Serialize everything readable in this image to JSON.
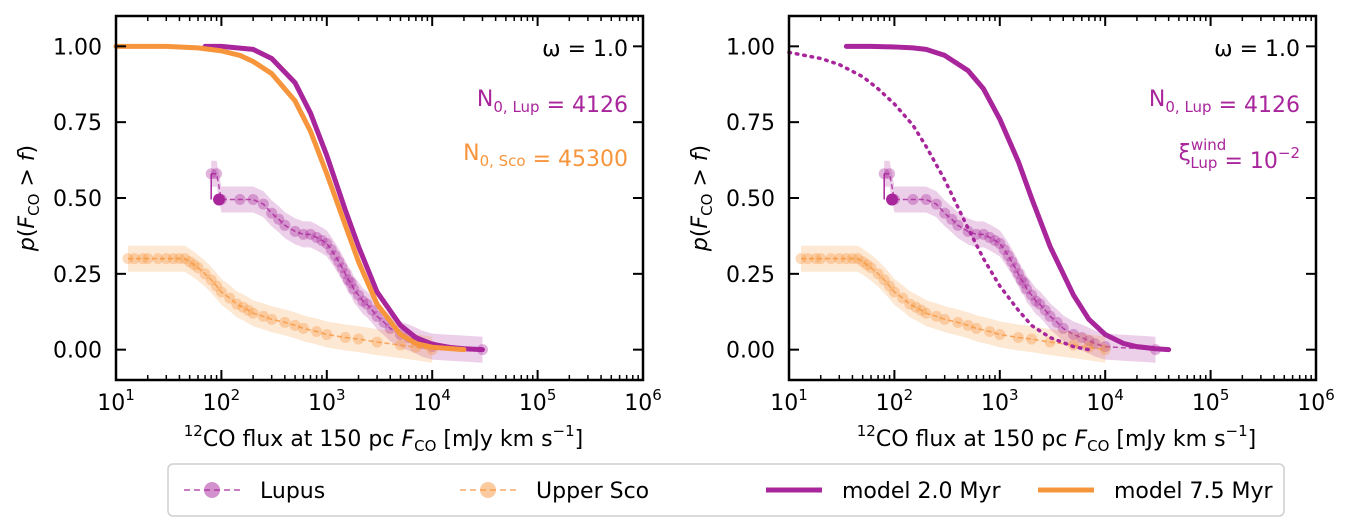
{
  "colors": {
    "lupus": "#a8259b",
    "usco": "#f7953d"
  },
  "legend": {
    "items": [
      {
        "label": "Lupus",
        "style": "obs",
        "color": "#a8259b"
      },
      {
        "label": "Upper Sco",
        "style": "obs",
        "color": "#f7953d"
      },
      {
        "label": "model 2.0 Myr",
        "style": "model",
        "color": "#a8259b"
      },
      {
        "label": "model 7.5 Myr",
        "style": "model",
        "color": "#f7953d"
      }
    ]
  },
  "chart_data": [
    {
      "type": "line",
      "xscale": "log",
      "xlim": [
        10,
        1000000
      ],
      "ylim": [
        -0.1,
        1.1
      ],
      "xlabel": "¹²CO flux at 150 pc F_CO [mJy km s⁻¹]",
      "ylabel": "p(F_CO > f)",
      "x_ticks": [
        10,
        100,
        1000,
        10000,
        100000,
        1000000
      ],
      "x_tick_labels": [
        "10^1",
        "10^2",
        "10^3",
        "10^4",
        "10^5",
        "10^6"
      ],
      "y_ticks": [
        0,
        0.25,
        0.5,
        0.75,
        1.0
      ],
      "y_tick_labels": [
        "0.00",
        "0.25",
        "0.50",
        "0.75",
        "1.00"
      ],
      "annotations": [
        {
          "text": "ω = 1.0",
          "color": "#000000"
        },
        {
          "text": "N_0,Lup = 4126",
          "color": "#a8259b"
        },
        {
          "text": "N_0,Sco = 45300",
          "color": "#f7953d"
        }
      ],
      "series": [
        {
          "name": "model 2.0 Myr",
          "style": "solid",
          "color": "#a8259b",
          "x": [
            70,
            100,
            200,
            300,
            500,
            700,
            1000,
            1500,
            2000,
            3000,
            5000,
            7000,
            10000,
            15000,
            20000,
            30000
          ],
          "y": [
            1.0,
            1.0,
            0.99,
            0.96,
            0.88,
            0.78,
            0.64,
            0.46,
            0.34,
            0.19,
            0.08,
            0.04,
            0.018,
            0.007,
            0.003,
            0.0
          ]
        },
        {
          "name": "model 7.5 Myr",
          "style": "solid",
          "color": "#f7953d",
          "x": [
            10,
            30,
            60,
            100,
            150,
            200,
            300,
            500,
            700,
            1000,
            1500,
            2000,
            3000,
            5000,
            7000,
            10000,
            20000
          ],
          "y": [
            1.0,
            1.0,
            0.995,
            0.985,
            0.97,
            0.95,
            0.91,
            0.82,
            0.72,
            0.58,
            0.41,
            0.29,
            0.15,
            0.05,
            0.02,
            0.008,
            0.0
          ]
        },
        {
          "name": "Lupus",
          "style": "obs",
          "color": "#a8259b",
          "x": [
            80,
            90,
            100,
            150,
            200,
            250,
            300,
            350,
            400,
            500,
            600,
            700,
            800,
            900,
            1000,
            1100,
            1200,
            1300,
            1400,
            1500,
            1600,
            1700,
            1800,
            2000,
            2200,
            2400,
            2700,
            3000,
            3500,
            4000,
            5000,
            6000,
            7000,
            8000,
            10000,
            30000
          ],
          "y": [
            0.58,
            0.58,
            0.495,
            0.495,
            0.495,
            0.48,
            0.45,
            0.43,
            0.41,
            0.39,
            0.38,
            0.38,
            0.37,
            0.36,
            0.35,
            0.33,
            0.31,
            0.29,
            0.27,
            0.25,
            0.23,
            0.22,
            0.2,
            0.18,
            0.16,
            0.15,
            0.13,
            0.11,
            0.09,
            0.07,
            0.05,
            0.04,
            0.03,
            0.02,
            0.01,
            0.0
          ]
        },
        {
          "name": "Upper Sco",
          "style": "obs",
          "color": "#f7953d",
          "x": [
            13,
            15,
            18,
            20,
            25,
            30,
            35,
            40,
            45,
            50,
            55,
            60,
            70,
            80,
            90,
            100,
            120,
            140,
            160,
            180,
            200,
            250,
            300,
            400,
            500,
            600,
            800,
            1000,
            1500,
            2000,
            3000,
            5000,
            7000,
            10000
          ],
          "y": [
            0.3,
            0.3,
            0.3,
            0.3,
            0.3,
            0.3,
            0.3,
            0.3,
            0.3,
            0.29,
            0.28,
            0.27,
            0.25,
            0.23,
            0.21,
            0.19,
            0.17,
            0.15,
            0.14,
            0.13,
            0.12,
            0.11,
            0.1,
            0.09,
            0.08,
            0.07,
            0.06,
            0.05,
            0.04,
            0.035,
            0.025,
            0.015,
            0.008,
            0.0
          ]
        }
      ]
    },
    {
      "type": "line",
      "xscale": "log",
      "xlim": [
        10,
        1000000
      ],
      "ylim": [
        -0.1,
        1.1
      ],
      "xlabel": "¹²CO flux at 150 pc F_CO [mJy km s⁻¹]",
      "ylabel": "p(F_CO > f)",
      "x_ticks": [
        10,
        100,
        1000,
        10000,
        100000,
        1000000
      ],
      "x_tick_labels": [
        "10^1",
        "10^2",
        "10^3",
        "10^4",
        "10^5",
        "10^6"
      ],
      "y_ticks": [
        0,
        0.25,
        0.5,
        0.75,
        1.0
      ],
      "y_tick_labels": [
        "0.00",
        "0.25",
        "0.50",
        "0.75",
        "1.00"
      ],
      "annotations": [
        {
          "text": "ω = 1.0",
          "color": "#000000"
        },
        {
          "text": "N_0,Lup = 4126",
          "color": "#a8259b"
        },
        {
          "text": "ξ_Lup^wind = 10^−2",
          "color": "#a8259b"
        }
      ],
      "series": [
        {
          "name": "model 2.0 Myr",
          "style": "solid",
          "color": "#a8259b",
          "x": [
            35,
            60,
            100,
            150,
            200,
            300,
            500,
            700,
            1000,
            1500,
            2000,
            3000,
            5000,
            7000,
            10000,
            15000,
            20000,
            30000,
            40000
          ],
          "y": [
            1.0,
            1.0,
            0.998,
            0.995,
            0.99,
            0.97,
            0.92,
            0.86,
            0.76,
            0.62,
            0.5,
            0.34,
            0.18,
            0.1,
            0.05,
            0.02,
            0.01,
            0.003,
            0.0
          ]
        },
        {
          "name": "",
          "style": "dotted",
          "color": "#a8259b",
          "x": [
            10,
            20,
            30,
            50,
            70,
            100,
            150,
            200,
            300,
            400,
            500,
            700,
            1000,
            1500,
            2000,
            3000,
            5000,
            7000
          ],
          "y": [
            0.98,
            0.96,
            0.94,
            0.9,
            0.86,
            0.81,
            0.74,
            0.67,
            0.56,
            0.47,
            0.4,
            0.3,
            0.21,
            0.13,
            0.08,
            0.04,
            0.01,
            0.0
          ]
        },
        {
          "name": "Lupus",
          "style": "obs",
          "color": "#a8259b",
          "x": [
            80,
            90,
            100,
            150,
            200,
            250,
            300,
            350,
            400,
            500,
            600,
            700,
            800,
            900,
            1000,
            1100,
            1200,
            1300,
            1400,
            1500,
            1600,
            1700,
            1800,
            2000,
            2200,
            2400,
            2700,
            3000,
            3500,
            4000,
            5000,
            6000,
            7000,
            8000,
            10000,
            30000
          ],
          "y": [
            0.58,
            0.58,
            0.495,
            0.495,
            0.495,
            0.48,
            0.45,
            0.43,
            0.41,
            0.39,
            0.38,
            0.38,
            0.37,
            0.36,
            0.35,
            0.33,
            0.31,
            0.29,
            0.27,
            0.25,
            0.23,
            0.22,
            0.2,
            0.18,
            0.16,
            0.15,
            0.13,
            0.11,
            0.09,
            0.07,
            0.05,
            0.04,
            0.03,
            0.02,
            0.01,
            0.0
          ]
        },
        {
          "name": "Upper Sco",
          "style": "obs",
          "color": "#f7953d",
          "x": [
            13,
            15,
            18,
            20,
            25,
            30,
            35,
            40,
            45,
            50,
            55,
            60,
            70,
            80,
            90,
            100,
            120,
            140,
            160,
            180,
            200,
            250,
            300,
            400,
            500,
            600,
            800,
            1000,
            1500,
            2000,
            3000,
            5000,
            7000,
            10000
          ],
          "y": [
            0.3,
            0.3,
            0.3,
            0.3,
            0.3,
            0.3,
            0.3,
            0.3,
            0.3,
            0.29,
            0.28,
            0.27,
            0.25,
            0.23,
            0.21,
            0.19,
            0.17,
            0.15,
            0.14,
            0.13,
            0.12,
            0.11,
            0.1,
            0.09,
            0.08,
            0.07,
            0.06,
            0.05,
            0.04,
            0.035,
            0.025,
            0.015,
            0.008,
            0.0
          ]
        }
      ]
    }
  ]
}
